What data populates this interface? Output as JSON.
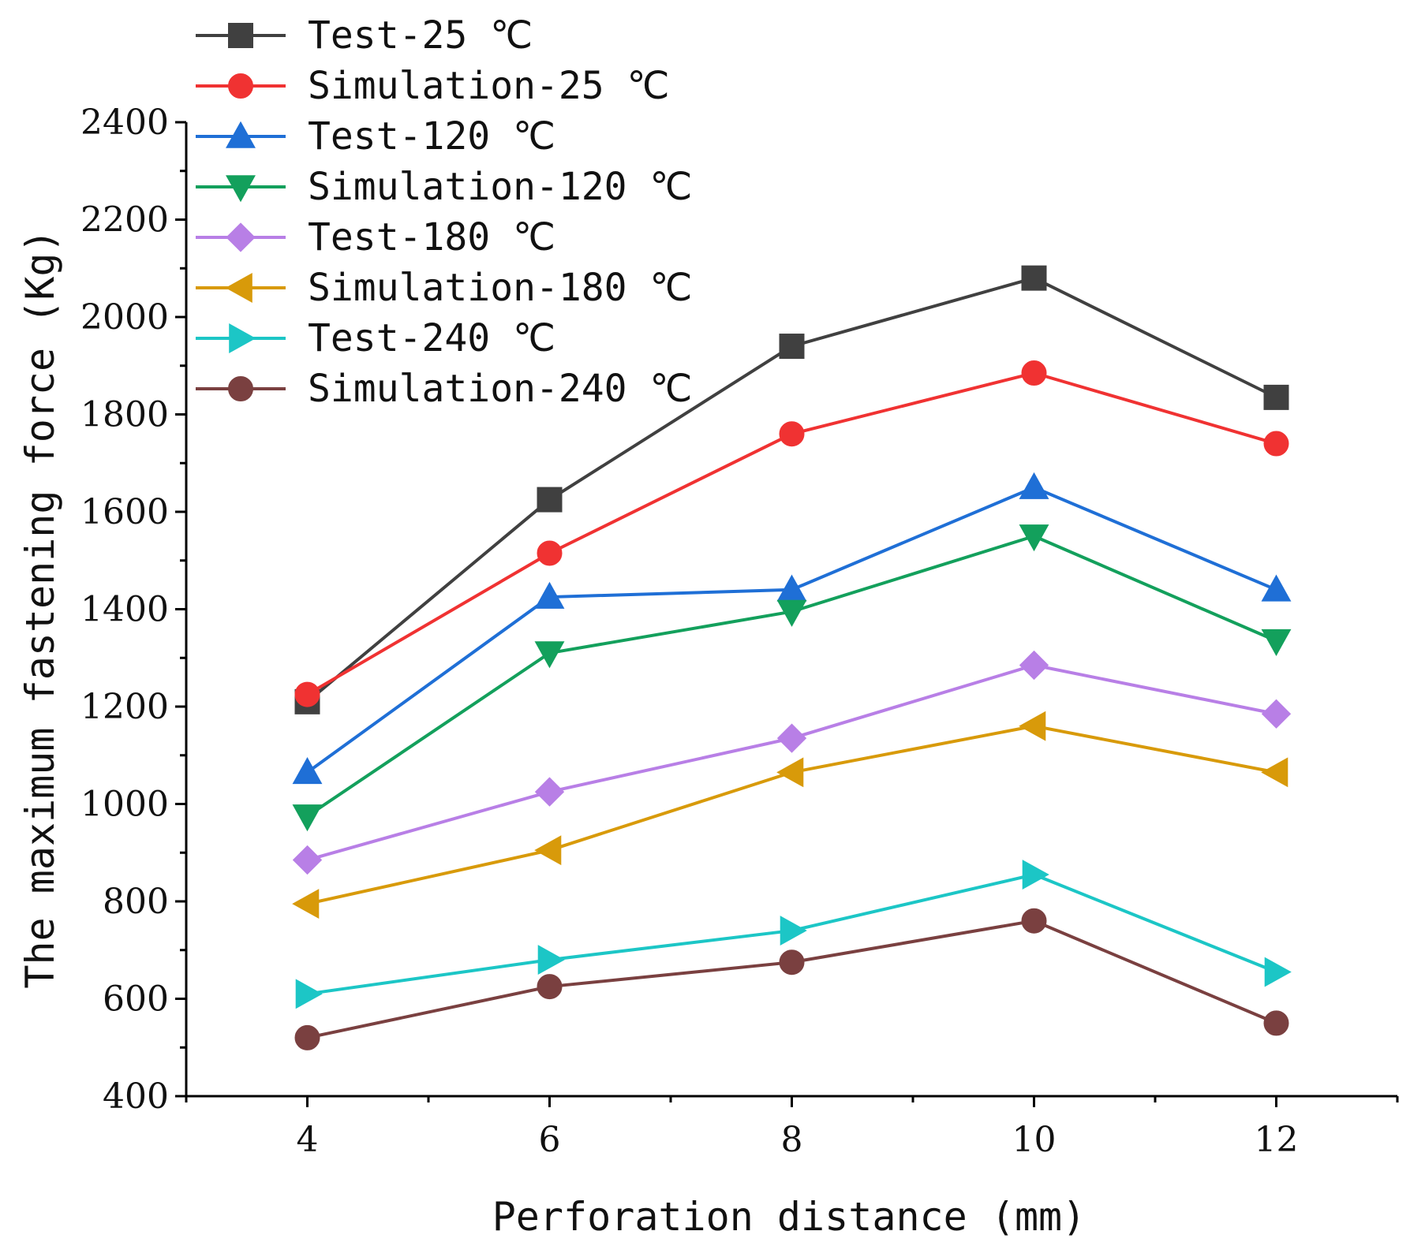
{
  "chart_data": {
    "type": "line",
    "xlabel": "Perforation distance (mm)",
    "ylabel": "The maximum fastening force (Kg)",
    "xlim": [
      3,
      13
    ],
    "ylim": [
      400,
      2400
    ],
    "x_ticks": [
      4,
      6,
      8,
      10,
      12
    ],
    "y_ticks": [
      400,
      600,
      800,
      1000,
      1200,
      1400,
      1600,
      1800,
      2000,
      2200,
      2400
    ],
    "legend_position": "top-left",
    "x": [
      4,
      6,
      8,
      10,
      12
    ],
    "series": [
      {
        "name": "Test-25 ℃",
        "color": "#404040",
        "marker": "square",
        "values": [
          1210,
          1625,
          1940,
          2080,
          1835
        ]
      },
      {
        "name": "Simulation-25 ℃",
        "color": "#f03232",
        "marker": "circle",
        "values": [
          1225,
          1515,
          1760,
          1885,
          1740
        ]
      },
      {
        "name": "Test-120 ℃",
        "color": "#1f6fd6",
        "marker": "triangle-up",
        "values": [
          1065,
          1425,
          1440,
          1650,
          1440
        ]
      },
      {
        "name": "Simulation-120 ℃",
        "color": "#13a05c",
        "marker": "triangle-down",
        "values": [
          975,
          1310,
          1395,
          1550,
          1335
        ]
      },
      {
        "name": "Test-180 ℃",
        "color": "#b87fe6",
        "marker": "diamond",
        "values": [
          885,
          1025,
          1135,
          1285,
          1185
        ]
      },
      {
        "name": "Simulation-180 ℃",
        "color": "#d89a0a",
        "marker": "triangle-left",
        "values": [
          795,
          905,
          1065,
          1160,
          1065
        ]
      },
      {
        "name": "Test-240 ℃",
        "color": "#1cc6c6",
        "marker": "triangle-right",
        "values": [
          610,
          680,
          740,
          855,
          655
        ]
      },
      {
        "name": "Simulation-240 ℃",
        "color": "#7a4040",
        "marker": "circle",
        "values": [
          520,
          625,
          675,
          760,
          550
        ]
      }
    ]
  }
}
